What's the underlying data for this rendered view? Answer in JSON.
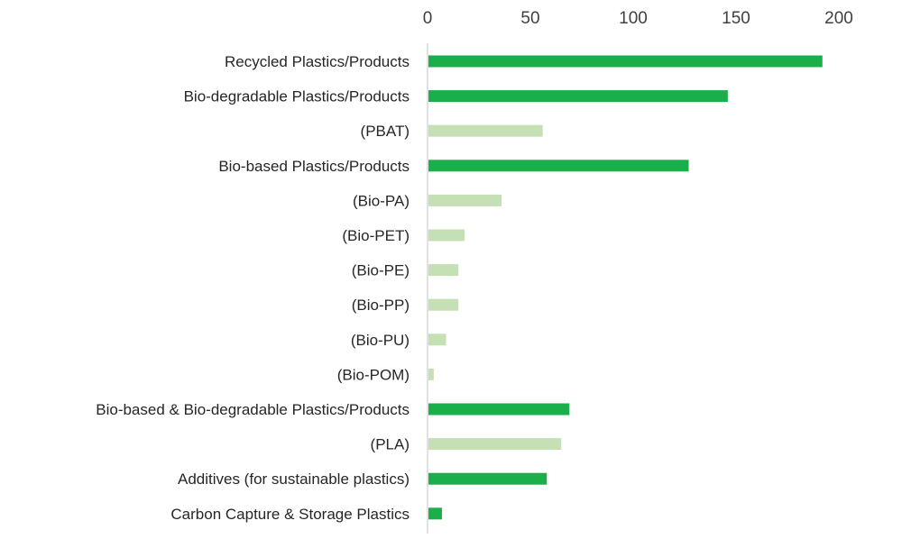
{
  "chart_data": {
    "type": "bar",
    "orientation": "horizontal",
    "title": "",
    "xlabel": "",
    "ylabel": "",
    "xlim": [
      0,
      200
    ],
    "x_ticks": [
      0,
      50,
      100,
      150,
      200
    ],
    "x_axis_position": "top",
    "grid": false,
    "legend": "none",
    "categories": [
      "Recycled Plastics/Products",
      "Bio-degradable Plastics/Products",
      "(PBAT)",
      "Bio-based Plastics/Products",
      "(Bio-PA)",
      "(Bio-PET)",
      "(Bio-PE)",
      "(Bio-PP)",
      "(Bio-PU)",
      "(Bio-POM)",
      "Bio-based & Bio-degradable Plastics/Products",
      "(PLA)",
      "Additives (for sustainable plastics)",
      "Carbon Capture & Storage Plastics"
    ],
    "values": [
      192,
      146,
      56,
      127,
      36,
      18,
      15,
      15,
      9,
      3,
      69,
      65,
      58,
      7
    ],
    "bar_kind": [
      "main",
      "main",
      "sub",
      "main",
      "sub",
      "sub",
      "sub",
      "sub",
      "sub",
      "sub",
      "main",
      "sub",
      "main",
      "main"
    ],
    "colors": {
      "main": "#1aaf4b",
      "sub": "#c5e0b4",
      "axis": "#d9d9d9"
    }
  }
}
